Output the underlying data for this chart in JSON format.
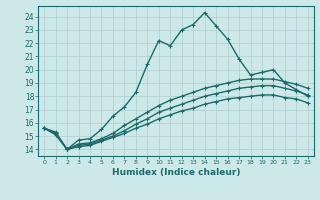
{
  "xlabel": "Humidex (Indice chaleur)",
  "background_color": "#cde8e8",
  "grid_color": "#aecece",
  "line_color": "#1a6b6b",
  "xlim": [
    -0.5,
    23.5
  ],
  "ylim": [
    13.5,
    24.8
  ],
  "x_ticks": [
    0,
    1,
    2,
    3,
    4,
    5,
    6,
    7,
    8,
    9,
    10,
    11,
    12,
    13,
    14,
    15,
    16,
    17,
    18,
    19,
    20,
    21,
    22,
    23
  ],
  "y_ticks": [
    14,
    15,
    16,
    17,
    18,
    19,
    20,
    21,
    22,
    23,
    24
  ],
  "series": [
    {
      "x": [
        0,
        1,
        2,
        3,
        4,
        5,
        6,
        7,
        8,
        9,
        10,
        11,
        12,
        13,
        14,
        15,
        16,
        17,
        18,
        19,
        20,
        21,
        22,
        23
      ],
      "y": [
        15.6,
        15.3,
        14.0,
        14.7,
        14.8,
        15.5,
        16.5,
        17.2,
        18.3,
        20.4,
        22.2,
        21.8,
        23.0,
        23.4,
        24.3,
        23.3,
        22.3,
        20.8,
        19.6,
        19.8,
        20.0,
        19.0,
        18.5,
        18.0
      ]
    },
    {
      "x": [
        0,
        1,
        2,
        3,
        4,
        5,
        6,
        7,
        8,
        9,
        10,
        11,
        12,
        13,
        14,
        15,
        16,
        17,
        18,
        19,
        20,
        21,
        22,
        23
      ],
      "y": [
        15.6,
        15.2,
        14.0,
        14.4,
        14.5,
        14.8,
        15.2,
        15.8,
        16.3,
        16.8,
        17.3,
        17.7,
        18.0,
        18.3,
        18.6,
        18.8,
        19.0,
        19.2,
        19.3,
        19.3,
        19.3,
        19.1,
        18.9,
        18.6
      ]
    },
    {
      "x": [
        0,
        1,
        2,
        3,
        4,
        5,
        6,
        7,
        8,
        9,
        10,
        11,
        12,
        13,
        14,
        15,
        16,
        17,
        18,
        19,
        20,
        21,
        22,
        23
      ],
      "y": [
        15.6,
        15.2,
        14.0,
        14.3,
        14.4,
        14.7,
        15.0,
        15.4,
        15.9,
        16.3,
        16.8,
        17.1,
        17.4,
        17.7,
        18.0,
        18.2,
        18.4,
        18.6,
        18.7,
        18.8,
        18.8,
        18.6,
        18.4,
        18.1
      ]
    },
    {
      "x": [
        0,
        1,
        2,
        3,
        4,
        5,
        6,
        7,
        8,
        9,
        10,
        11,
        12,
        13,
        14,
        15,
        16,
        17,
        18,
        19,
        20,
        21,
        22,
        23
      ],
      "y": [
        15.6,
        15.1,
        14.0,
        14.2,
        14.3,
        14.6,
        14.9,
        15.2,
        15.6,
        15.9,
        16.3,
        16.6,
        16.9,
        17.1,
        17.4,
        17.6,
        17.8,
        17.9,
        18.0,
        18.1,
        18.1,
        17.9,
        17.8,
        17.5
      ]
    }
  ]
}
